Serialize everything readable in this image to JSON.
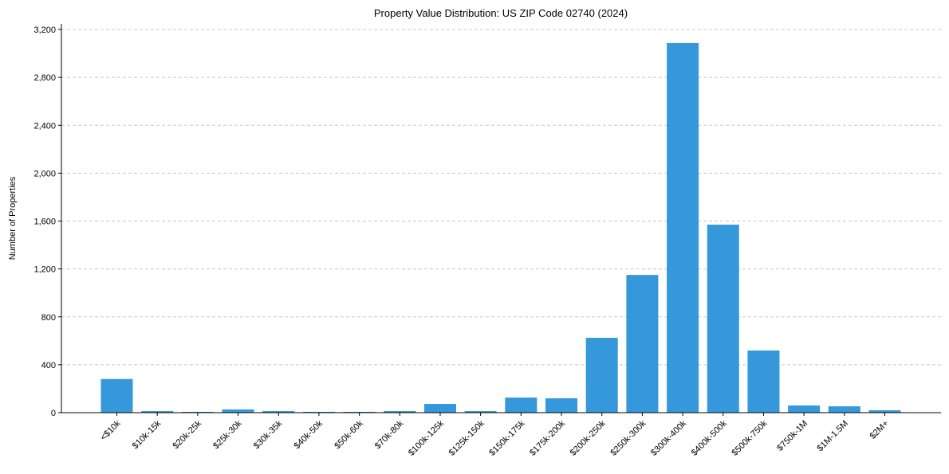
{
  "chart_data": {
    "type": "bar",
    "title": "Property Value Distribution: US ZIP Code 02740 (2024)",
    "xlabel": "",
    "ylabel": "Number of Properties",
    "ylim": [
      0,
      3200
    ],
    "yticks": [
      0,
      400,
      800,
      1200,
      1600,
      2000,
      2400,
      2800,
      3200
    ],
    "ytick_labels": [
      "0",
      "400",
      "800",
      "1,200",
      "1,600",
      "2,000",
      "2,400",
      "2,800",
      "3,200"
    ],
    "grid": "y-dashed",
    "categories": [
      "<$10k",
      "$10k-15k",
      "$20k-25k",
      "$25k-30k",
      "$30k-35k",
      "$40k-50k",
      "$50k-60k",
      "$70k-80k",
      "$100k-125k",
      "$125k-150k",
      "$150k-175k",
      "$175k-200k",
      "$200k-250k",
      "$250k-300k",
      "$300k-400k",
      "$400k-500k",
      "$500k-750k",
      "$750k-1M",
      "$1M-1.5M",
      "$2M+"
    ],
    "values": [
      281,
      13,
      7,
      27,
      13,
      7,
      7,
      13,
      73,
      13,
      126,
      120,
      625,
      1150,
      3087,
      1570,
      519,
      60,
      53,
      20
    ],
    "bar_color": "#3498db"
  }
}
